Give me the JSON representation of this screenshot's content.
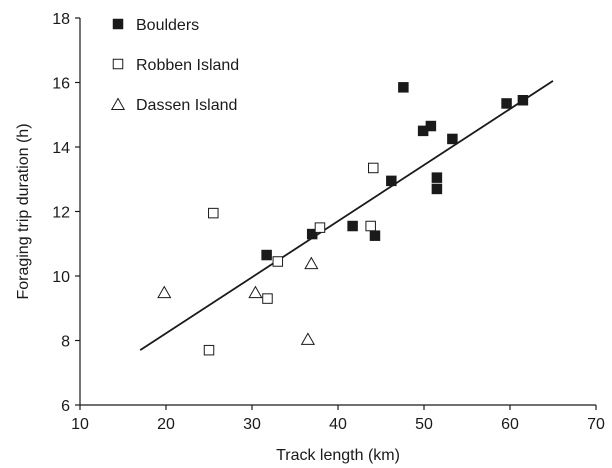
{
  "chart_data": {
    "type": "scatter",
    "xlabel": "Track length (km)",
    "ylabel": "Foraging trip duration (h)",
    "xlim": [
      10,
      70
    ],
    "ylim": [
      6,
      18
    ],
    "xticks": [
      10,
      20,
      30,
      40,
      50,
      60,
      70
    ],
    "yticks": [
      6,
      8,
      10,
      12,
      14,
      16,
      18
    ],
    "grid": false,
    "legend_position": "top-left",
    "series": [
      {
        "name": "Boulders",
        "marker": "filled-square",
        "color": "#1a1a1a",
        "points": [
          {
            "x": 31.7,
            "y": 10.65
          },
          {
            "x": 37.0,
            "y": 11.3
          },
          {
            "x": 41.7,
            "y": 11.55
          },
          {
            "x": 44.3,
            "y": 11.25
          },
          {
            "x": 46.2,
            "y": 12.95
          },
          {
            "x": 47.6,
            "y": 15.85
          },
          {
            "x": 49.9,
            "y": 14.5
          },
          {
            "x": 50.8,
            "y": 14.65
          },
          {
            "x": 51.5,
            "y": 13.05
          },
          {
            "x": 51.5,
            "y": 12.7
          },
          {
            "x": 53.3,
            "y": 14.25
          },
          {
            "x": 59.6,
            "y": 15.35
          },
          {
            "x": 61.5,
            "y": 15.45
          }
        ]
      },
      {
        "name": "Robben Island",
        "marker": "open-square",
        "color": "#1a1a1a",
        "points": [
          {
            "x": 25.0,
            "y": 7.7
          },
          {
            "x": 25.5,
            "y": 11.95
          },
          {
            "x": 31.8,
            "y": 9.3
          },
          {
            "x": 33.0,
            "y": 10.45
          },
          {
            "x": 37.9,
            "y": 11.5
          },
          {
            "x": 43.8,
            "y": 11.55
          },
          {
            "x": 44.1,
            "y": 13.35
          }
        ]
      },
      {
        "name": "Dassen Island",
        "marker": "open-triangle",
        "color": "#1a1a1a",
        "points": [
          {
            "x": 19.8,
            "y": 9.5
          },
          {
            "x": 30.4,
            "y": 9.5
          },
          {
            "x": 36.5,
            "y": 8.05
          },
          {
            "x": 36.9,
            "y": 10.4
          }
        ]
      }
    ],
    "trendline": {
      "x": [
        17,
        65
      ],
      "y": [
        7.7,
        16.05
      ]
    }
  }
}
